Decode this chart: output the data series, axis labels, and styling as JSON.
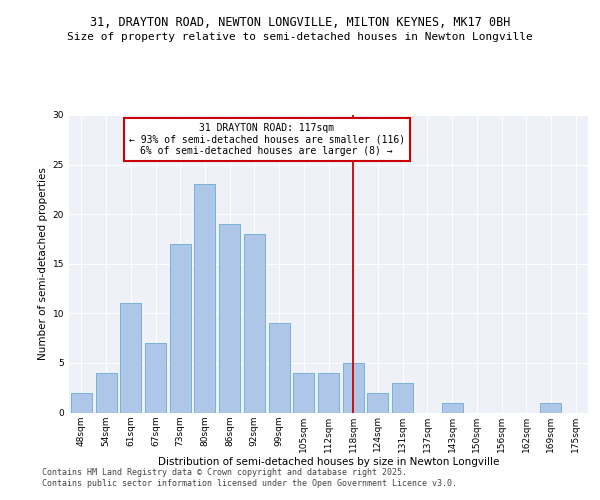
{
  "title_line1": "31, DRAYTON ROAD, NEWTON LONGVILLE, MILTON KEYNES, MK17 0BH",
  "title_line2": "Size of property relative to semi-detached houses in Newton Longville",
  "xlabel": "Distribution of semi-detached houses by size in Newton Longville",
  "ylabel": "Number of semi-detached properties",
  "categories": [
    "48sqm",
    "54sqm",
    "61sqm",
    "67sqm",
    "73sqm",
    "80sqm",
    "86sqm",
    "92sqm",
    "99sqm",
    "105sqm",
    "112sqm",
    "118sqm",
    "124sqm",
    "131sqm",
    "137sqm",
    "143sqm",
    "150sqm",
    "156sqm",
    "162sqm",
    "169sqm",
    "175sqm"
  ],
  "values": [
    2,
    4,
    11,
    7,
    17,
    23,
    19,
    18,
    9,
    4,
    4,
    5,
    2,
    3,
    0,
    1,
    0,
    0,
    0,
    1,
    0
  ],
  "bar_color": "#aec6e8",
  "bar_edge_color": "#6aaad4",
  "highlight_index": 11,
  "vline_color": "#cc0000",
  "annotation_text": "31 DRAYTON ROAD: 117sqm\n← 93% of semi-detached houses are smaller (116)\n6% of semi-detached houses are larger (8) →",
  "annotation_box_color": "#ffffff",
  "annotation_border_color": "#cc0000",
  "ylim": [
    0,
    30
  ],
  "yticks": [
    0,
    5,
    10,
    15,
    20,
    25,
    30
  ],
  "footer_text": "Contains HM Land Registry data © Crown copyright and database right 2025.\nContains public sector information licensed under the Open Government Licence v3.0.",
  "bg_color": "#eef2f8",
  "title_fontsize": 8.5,
  "subtitle_fontsize": 8.0,
  "axis_label_fontsize": 7.5,
  "tick_fontsize": 6.5,
  "annotation_fontsize": 7.0,
  "footer_fontsize": 6.0
}
